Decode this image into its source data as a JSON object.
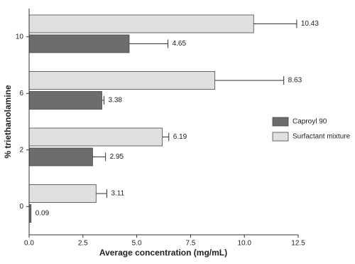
{
  "chart_data": {
    "type": "hbar",
    "x_label": "Average concentration (mg/mL)",
    "y_label": "% triethanolamine",
    "categories": [
      "0",
      "2",
      "6",
      "10"
    ],
    "series": [
      {
        "name": "Caproyl 90",
        "color": "#6d6d6d",
        "values": [
          0.09,
          2.95,
          3.38,
          4.65
        ],
        "errors": [
          0,
          0.6,
          0.1,
          1.8
        ]
      },
      {
        "name": "Surfactant mixture",
        "color": "#e0e0e0",
        "values": [
          3.11,
          6.19,
          8.63,
          10.43
        ],
        "errors": [
          0.5,
          0.3,
          3.2,
          2.0
        ]
      }
    ],
    "xlim": [
      0,
      12.5
    ],
    "xticks": [
      {
        "value": 0,
        "label": "0.0"
      },
      {
        "value": 2.5,
        "label": "2.5"
      },
      {
        "value": 5,
        "label": "5.0"
      },
      {
        "value": 7.5,
        "label": "7.5"
      },
      {
        "value": 10,
        "label": "10.0"
      },
      {
        "value": 12.5,
        "label": "12.5"
      }
    ],
    "legend": "right"
  }
}
